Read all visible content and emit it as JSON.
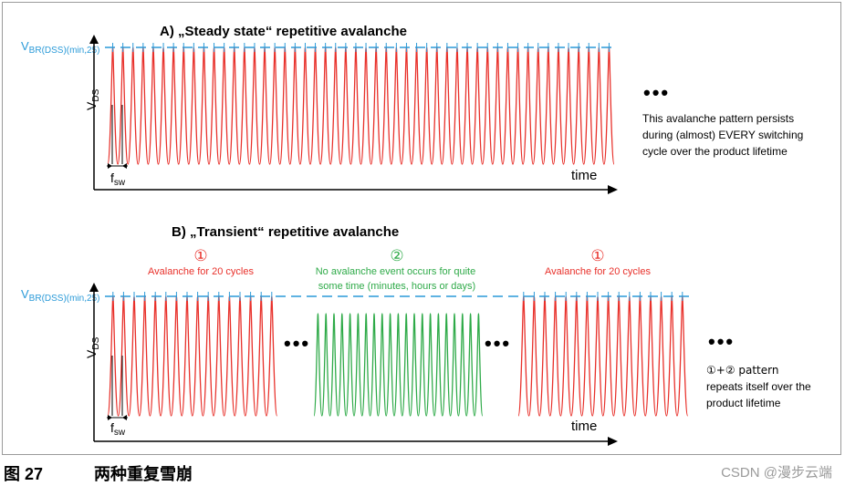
{
  "panel_a": {
    "title": "A) „Steady state“ repetitive avalanche",
    "vbr_main": "V",
    "vbr_sub": "BR(DSS)(min,25)",
    "vds_main": "V",
    "vds_sub": "DS",
    "time_label": "time",
    "fsw_main": "f",
    "fsw_sub": "sw",
    "ellipsis": "•••",
    "note_lines": [
      "This avalanche pattern persists",
      "during (almost) EVERY switching",
      "cycle over the product lifetime"
    ]
  },
  "panel_b": {
    "title": "B) „Transient“ repetitive avalanche",
    "vbr_main": "V",
    "vbr_sub": "BR(DSS)(min,25)",
    "vds_main": "V",
    "vds_sub": "DS",
    "time_label": "time",
    "fsw_main": "f",
    "fsw_sub": "sw",
    "phase1_num": "①",
    "phase1_label": "Avalanche for 20 cycles",
    "phase2_num": "②",
    "phase2_label_lines": [
      "No avalanche event occurs for quite",
      "some time (minutes, hours or days)"
    ],
    "phase3_num": "①",
    "phase3_label": "Avalanche for 20 cycles",
    "ellipsis_1": "•••",
    "ellipsis_2": "•••",
    "ellipsis_3": "•••",
    "note_lines": [
      "①+② pattern",
      "repeats itself over the",
      "product lifetime"
    ]
  },
  "caption": {
    "figure_number": "图 27",
    "title": "两种重复雪崩"
  },
  "watermark": "CSDN @漫步云端",
  "colors": {
    "avalanche": "#e8302a",
    "no_avalanche": "#2eaa48",
    "threshold": "#2a9ad8",
    "axis": "#000000"
  },
  "icons": {
    "axis_arrow": "arrow-head-icon",
    "fsw_marker": "double-arrow-icon"
  }
}
